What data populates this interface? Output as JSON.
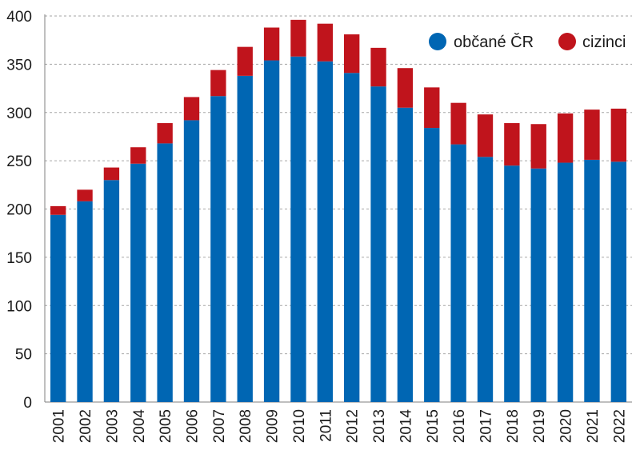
{
  "chart_data": {
    "type": "bar",
    "stacked": true,
    "categories": [
      "2001",
      "2002",
      "2003",
      "2004",
      "2005",
      "2006",
      "2007",
      "2008",
      "2009",
      "2010",
      "2011",
      "2012",
      "2013",
      "2014",
      "2015",
      "2016",
      "2017",
      "2018",
      "2019",
      "2020",
      "2021",
      "2022"
    ],
    "series": [
      {
        "name": "občané ČR",
        "color": "#0066b3",
        "values": [
          194,
          208,
          230,
          247,
          268,
          292,
          317,
          338,
          354,
          358,
          353,
          341,
          327,
          305,
          284,
          267,
          254,
          245,
          242,
          248,
          251,
          249
        ]
      },
      {
        "name": "cizinci",
        "color": "#c0141c",
        "values": [
          9,
          12,
          13,
          17,
          21,
          24,
          27,
          30,
          34,
          38,
          39,
          40,
          40,
          41,
          42,
          43,
          44,
          44,
          46,
          51,
          52,
          55
        ]
      }
    ],
    "ylim": [
      0,
      400
    ],
    "yticks": [
      "0",
      "50",
      "100",
      "150",
      "200",
      "250",
      "300",
      "350",
      "400"
    ],
    "title": "",
    "xlabel": "",
    "ylabel": "",
    "grid": true,
    "legend_position": "top-right"
  }
}
